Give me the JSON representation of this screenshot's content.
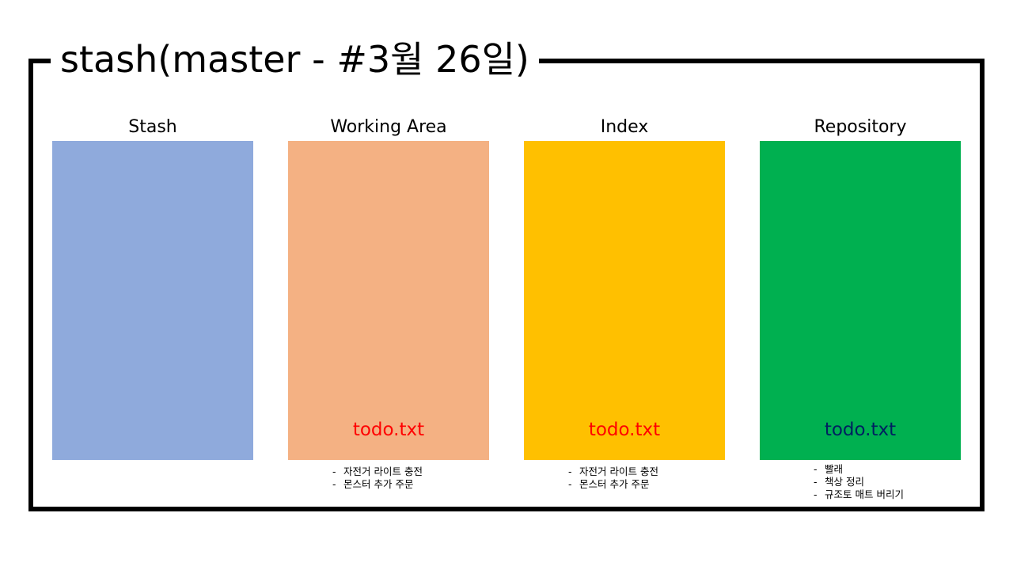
{
  "title": "stash(master - #3월 26일)",
  "colors": {
    "frame": "#000000",
    "stash": "#8FAADC",
    "working_area": "#F4B183",
    "index": "#FFC000",
    "repository": "#00B050",
    "file_red": "#FF0000",
    "file_navy": "#002060"
  },
  "columns": [
    {
      "label": "Stash",
      "file": "",
      "notes": []
    },
    {
      "label": "Working Area",
      "file": "todo.txt",
      "notes": [
        "자전거 라이트 충전",
        "몬스터 추가 주문"
      ]
    },
    {
      "label": "Index",
      "file": "todo.txt",
      "notes": [
        "자전거 라이트 충전",
        "몬스터 추가 주문"
      ]
    },
    {
      "label": "Repository",
      "file": "todo.txt",
      "notes": [
        "빨래",
        "책상 정리",
        "규조토 매트 버리기"
      ]
    }
  ],
  "note_bullet": "-"
}
